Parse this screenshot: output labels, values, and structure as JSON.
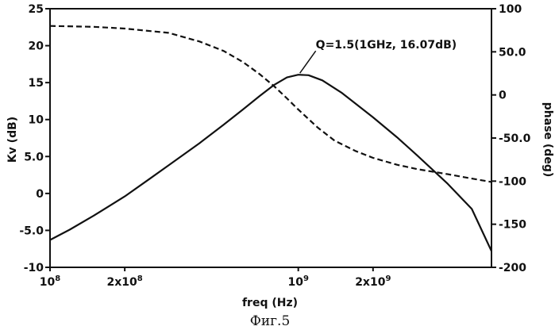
{
  "chart_data": {
    "type": "line",
    "x_scale": "log",
    "xlim": [
      100000000,
      6000000000
    ],
    "xlabel": "freq (Hz)",
    "x_tick_values": [
      100000000,
      200000000,
      1000000000,
      2000000000
    ],
    "x_tick_labels": [
      {
        "base": "10",
        "exp": "8"
      },
      {
        "base": "2x10",
        "exp": "8"
      },
      {
        "base": "10",
        "exp": "9"
      },
      {
        "base": "2x10",
        "exp": "9"
      }
    ],
    "ylabel_left": "Kv (dB)",
    "ylim_left": [
      -10,
      25
    ],
    "y_ticks_left": [
      25,
      20,
      15,
      10,
      5,
      0,
      -5,
      -10
    ],
    "y_tick_labels_left": [
      "25",
      "20",
      "15",
      "10",
      "5.0",
      "0",
      "-5.0",
      "-10"
    ],
    "ylabel_right": "phase (deg)",
    "ylim_right": [
      -200,
      100
    ],
    "y_ticks_right": [
      100,
      50,
      0,
      -50,
      -100,
      -150,
      -200
    ],
    "y_tick_labels_right": [
      "100",
      "50.0",
      "0",
      "-50.0",
      "-100",
      "-150",
      "-200"
    ],
    "grid": false,
    "series": [
      {
        "axis": "left",
        "style": "solid",
        "points": [
          [
            100000000,
            -6.3
          ],
          [
            120000000,
            -4.9
          ],
          [
            150000000,
            -3.0
          ],
          [
            200000000,
            -0.4
          ],
          [
            250000000,
            1.9
          ],
          [
            300000000,
            3.8
          ],
          [
            400000000,
            6.8
          ],
          [
            500000000,
            9.3
          ],
          [
            600000000,
            11.4
          ],
          [
            700000000,
            13.2
          ],
          [
            800000000,
            14.7
          ],
          [
            900000000,
            15.7
          ],
          [
            1000000000,
            16.07
          ],
          [
            1100000000,
            16.0
          ],
          [
            1250000000,
            15.3
          ],
          [
            1500000000,
            13.6
          ],
          [
            2000000000,
            10.3
          ],
          [
            2500000000,
            7.6
          ],
          [
            3000000000,
            5.2
          ],
          [
            4000000000,
            1.3
          ],
          [
            5000000000,
            -2.1
          ],
          [
            6000000000,
            -7.8
          ]
        ]
      },
      {
        "axis": "right",
        "style": "dashed",
        "points": [
          [
            100000000,
            80
          ],
          [
            150000000,
            79
          ],
          [
            200000000,
            77
          ],
          [
            300000000,
            72
          ],
          [
            400000000,
            62
          ],
          [
            500000000,
            51
          ],
          [
            600000000,
            38
          ],
          [
            700000000,
            24
          ],
          [
            800000000,
            10
          ],
          [
            900000000,
            -4
          ],
          [
            1000000000,
            -17
          ],
          [
            1200000000,
            -38
          ],
          [
            1400000000,
            -53
          ],
          [
            1700000000,
            -65
          ],
          [
            2000000000,
            -73
          ],
          [
            2500000000,
            -81
          ],
          [
            3000000000,
            -86
          ],
          [
            4000000000,
            -92
          ],
          [
            5000000000,
            -97
          ],
          [
            6000000000,
            -101
          ]
        ]
      }
    ],
    "annotation": {
      "text": "Q=1.5(1GHz, 16.07dB)",
      "x": 1000000000,
      "y": 16.07
    }
  },
  "caption": "Фиг.5"
}
